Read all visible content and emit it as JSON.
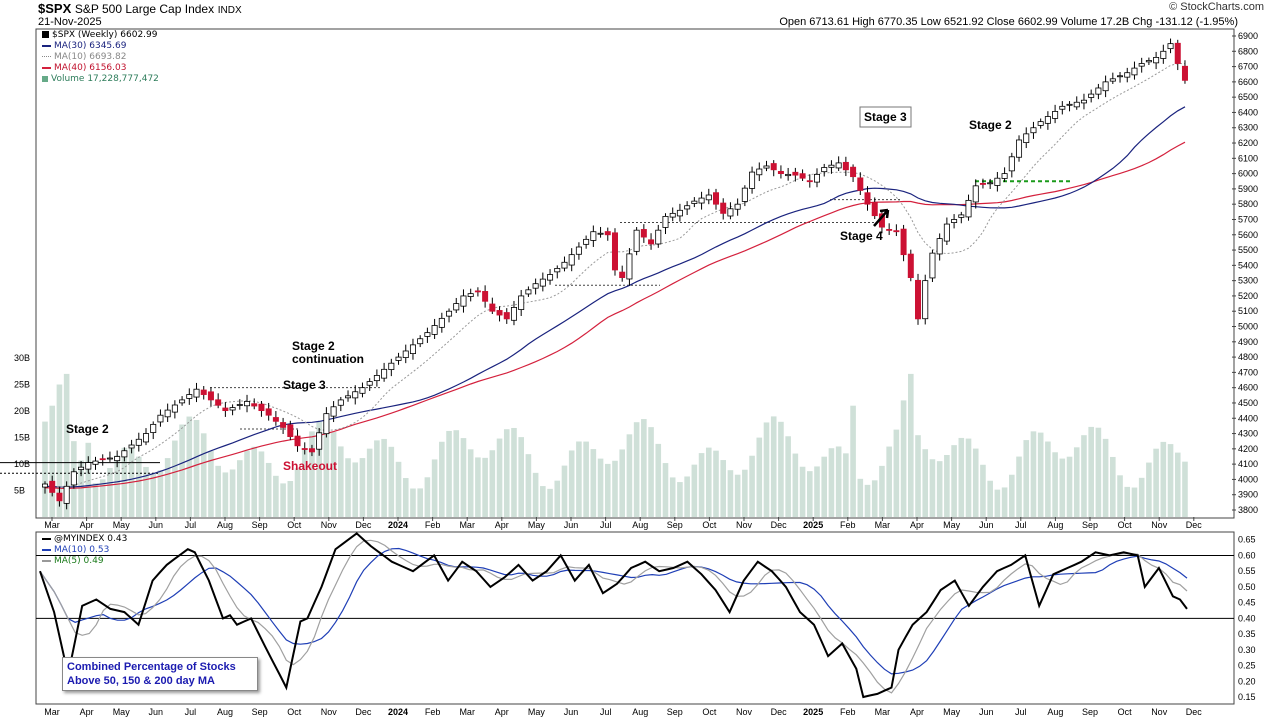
{
  "header": {
    "symbol": "$SPX",
    "name": "S&P 500 Large Cap Index",
    "exchange": "INDX",
    "date": "21-Nov-2025",
    "brand": "© StockCharts.com",
    "ohlc_text": "Open 6713.61  High 6770.35  Low 6521.92  Close 6602.99  Volume 17.2B  Chg -131.12 (-1.95%)"
  },
  "legend_main": {
    "series": "$SPX (Weekly) 6602.99",
    "ma30": "MA(30) 6345.69",
    "ma10": "MA(10) 6693.82",
    "ma40": "MA(40) 6156.03",
    "volume": "Volume 17,228,777,472"
  },
  "legend_indicator": {
    "series": "@MYINDEX 0.43",
    "ma10": "MA(10) 0.53",
    "ma5": "MA(5) 0.49"
  },
  "indicator_note": {
    "line1": "Combined Percentage of Stocks",
    "line2": "Above 50, 150 & 200 day MA"
  },
  "colors": {
    "up_candle": "#ffffff",
    "down_candle": "#cc1133",
    "ma30": "#1a237e",
    "ma40": "#d4213d",
    "ma10": "#999999",
    "volume": "#cfe0d8",
    "indicator": "#000000",
    "ind_ma10": "#1f3fb6",
    "ind_ma5": "#999999",
    "annotation_green": "#1a9a1a"
  },
  "chart_data": [
    {
      "type": "candlestick",
      "title": "$SPX S&P 500 Large Cap Index (Weekly)",
      "y_axis_ticks": [
        3800,
        3900,
        4000,
        4100,
        4200,
        4300,
        4400,
        4500,
        4600,
        4700,
        4800,
        4900,
        5000,
        5100,
        5200,
        5300,
        5400,
        5500,
        5600,
        5700,
        5800,
        5900,
        6000,
        6100,
        6200,
        6300,
        6400,
        6500,
        6600,
        6700,
        6800,
        6900
      ],
      "ylim": [
        3750,
        6950
      ],
      "x_tick_labels": [
        "Mar",
        "Apr",
        "May",
        "Jun",
        "Jul",
        "Aug",
        "Sep",
        "Oct",
        "Nov",
        "Dec",
        "2024",
        "Feb",
        "Mar",
        "Apr",
        "May",
        "Jun",
        "Jul",
        "Aug",
        "Sep",
        "Oct",
        "Nov",
        "Dec",
        "2025",
        "Feb",
        "Mar",
        "Apr",
        "May",
        "Jun",
        "Jul",
        "Aug",
        "Sep",
        "Oct",
        "Nov",
        "Dec"
      ],
      "close_waypoints": [
        [
          0,
          3970
        ],
        [
          2,
          3860
        ],
        [
          4,
          4050
        ],
        [
          6,
          4110
        ],
        [
          10,
          4150
        ],
        [
          14,
          4300
        ],
        [
          16,
          4420
        ],
        [
          19,
          4520
        ],
        [
          21,
          4590
        ],
        [
          23,
          4520
        ],
        [
          25,
          4450
        ],
        [
          28,
          4510
        ],
        [
          31,
          4420
        ],
        [
          33,
          4340
        ],
        [
          35,
          4220
        ],
        [
          37,
          4180
        ],
        [
          39,
          4430
        ],
        [
          41,
          4520
        ],
        [
          44,
          4600
        ],
        [
          47,
          4720
        ],
        [
          50,
          4840
        ],
        [
          53,
          4960
        ],
        [
          56,
          5100
        ],
        [
          58,
          5200
        ],
        [
          60,
          5230
        ],
        [
          62,
          5100
        ],
        [
          64,
          5050
        ],
        [
          66,
          5200
        ],
        [
          68,
          5280
        ],
        [
          70,
          5340
        ],
        [
          72,
          5420
        ],
        [
          74,
          5520
        ],
        [
          76,
          5620
        ],
        [
          78,
          5600
        ],
        [
          79,
          5370
        ],
        [
          80,
          5320
        ],
        [
          82,
          5630
        ],
        [
          84,
          5540
        ],
        [
          86,
          5720
        ],
        [
          88,
          5760
        ],
        [
          90,
          5820
        ],
        [
          92,
          5860
        ],
        [
          94,
          5740
        ],
        [
          96,
          5800
        ],
        [
          98,
          6010
        ],
        [
          100,
          6050
        ],
        [
          102,
          6000
        ],
        [
          104,
          5990
        ],
        [
          106,
          5950
        ],
        [
          108,
          6040
        ],
        [
          110,
          6070
        ],
        [
          112,
          5980
        ],
        [
          114,
          5800
        ],
        [
          116,
          5650
        ],
        [
          118,
          5620
        ],
        [
          120,
          5320
        ],
        [
          121,
          5050
        ],
        [
          122,
          5300
        ],
        [
          123,
          5480
        ],
        [
          125,
          5670
        ],
        [
          127,
          5730
        ],
        [
          129,
          5920
        ],
        [
          131,
          5940
        ],
        [
          133,
          6000
        ],
        [
          135,
          6220
        ],
        [
          138,
          6340
        ],
        [
          141,
          6440
        ],
        [
          144,
          6480
        ],
        [
          147,
          6600
        ],
        [
          150,
          6660
        ],
        [
          152,
          6720
        ],
        [
          154,
          6760
        ],
        [
          155,
          6800
        ],
        [
          156,
          6850
        ],
        [
          157,
          6720
        ],
        [
          158,
          6610
        ]
      ],
      "moving_averages": {
        "ma30": 6345.69,
        "ma10": 6693.82,
        "ma40": 6156.03
      },
      "volume_axis": {
        "ticks": [
          "5B",
          "10B",
          "15B",
          "20B",
          "25B",
          "30B"
        ],
        "last": 17228777472
      },
      "annotations": [
        "Stage 2",
        "Stage 2 continuation",
        "Stage 3",
        "Shakeout",
        "Stage 3",
        "Stage 4",
        "Stage 2"
      ]
    },
    {
      "type": "line",
      "title": "@MYINDEX",
      "y_axis_ticks": [
        0.15,
        0.2,
        0.25,
        0.3,
        0.35,
        0.4,
        0.45,
        0.5,
        0.55,
        0.6,
        0.65
      ],
      "ylim": [
        0.13,
        0.68
      ],
      "reference_lines": [
        0.4,
        0.6
      ],
      "last": {
        "series": 0.43,
        "ma10": 0.53,
        "ma5": 0.49
      },
      "waypoints": [
        [
          0,
          0.55
        ],
        [
          2,
          0.42
        ],
        [
          4,
          0.22
        ],
        [
          6,
          0.44
        ],
        [
          8,
          0.46
        ],
        [
          10,
          0.43
        ],
        [
          12,
          0.42
        ],
        [
          14,
          0.38
        ],
        [
          16,
          0.52
        ],
        [
          18,
          0.57
        ],
        [
          21,
          0.62
        ],
        [
          22,
          0.61
        ],
        [
          24,
          0.52
        ],
        [
          26,
          0.4
        ],
        [
          27,
          0.41
        ],
        [
          28,
          0.38
        ],
        [
          30,
          0.4
        ],
        [
          32,
          0.31
        ],
        [
          35,
          0.18
        ],
        [
          37,
          0.39
        ],
        [
          38,
          0.4
        ],
        [
          40,
          0.5
        ],
        [
          42,
          0.62
        ],
        [
          45,
          0.67
        ],
        [
          47,
          0.63
        ],
        [
          50,
          0.58
        ],
        [
          53,
          0.55
        ],
        [
          56,
          0.6
        ],
        [
          58,
          0.52
        ],
        [
          60,
          0.58
        ],
        [
          62,
          0.55
        ],
        [
          64,
          0.5
        ],
        [
          66,
          0.53
        ],
        [
          68,
          0.57
        ],
        [
          70,
          0.52
        ],
        [
          72,
          0.55
        ],
        [
          74,
          0.6
        ],
        [
          76,
          0.52
        ],
        [
          78,
          0.57
        ],
        [
          80,
          0.48
        ],
        [
          82,
          0.51
        ],
        [
          84,
          0.56
        ],
        [
          86,
          0.58
        ],
        [
          88,
          0.55
        ],
        [
          90,
          0.56
        ],
        [
          92,
          0.58
        ],
        [
          94,
          0.54
        ],
        [
          96,
          0.49
        ],
        [
          98,
          0.42
        ],
        [
          100,
          0.52
        ],
        [
          102,
          0.58
        ],
        [
          104,
          0.55
        ],
        [
          106,
          0.5
        ],
        [
          108,
          0.42
        ],
        [
          110,
          0.38
        ],
        [
          112,
          0.28
        ],
        [
          114,
          0.32
        ],
        [
          116,
          0.24
        ],
        [
          117,
          0.15
        ],
        [
          119,
          0.16
        ],
        [
          121,
          0.18
        ],
        [
          122,
          0.3
        ],
        [
          124,
          0.38
        ],
        [
          126,
          0.42
        ],
        [
          128,
          0.49
        ],
        [
          130,
          0.52
        ],
        [
          132,
          0.44
        ],
        [
          134,
          0.5
        ],
        [
          136,
          0.55
        ],
        [
          138,
          0.57
        ],
        [
          140,
          0.6
        ],
        [
          142,
          0.44
        ],
        [
          144,
          0.54
        ],
        [
          146,
          0.56
        ],
        [
          148,
          0.58
        ],
        [
          150,
          0.61
        ],
        [
          152,
          0.6
        ],
        [
          154,
          0.61
        ],
        [
          156,
          0.6
        ],
        [
          157,
          0.5
        ],
        [
          159,
          0.56
        ],
        [
          161,
          0.47
        ],
        [
          162,
          0.46
        ],
        [
          163,
          0.43
        ]
      ]
    }
  ],
  "text_annotations": {
    "stage2_left": "Stage 2",
    "stage2_cont_1": "Stage 2",
    "stage2_cont_2": "continuation",
    "stage3_left": "Stage 3",
    "shakeout": "Shakeout",
    "stage3_right": "Stage 3",
    "stage4": "Stage 4",
    "stage2_right": "Stage 2"
  }
}
